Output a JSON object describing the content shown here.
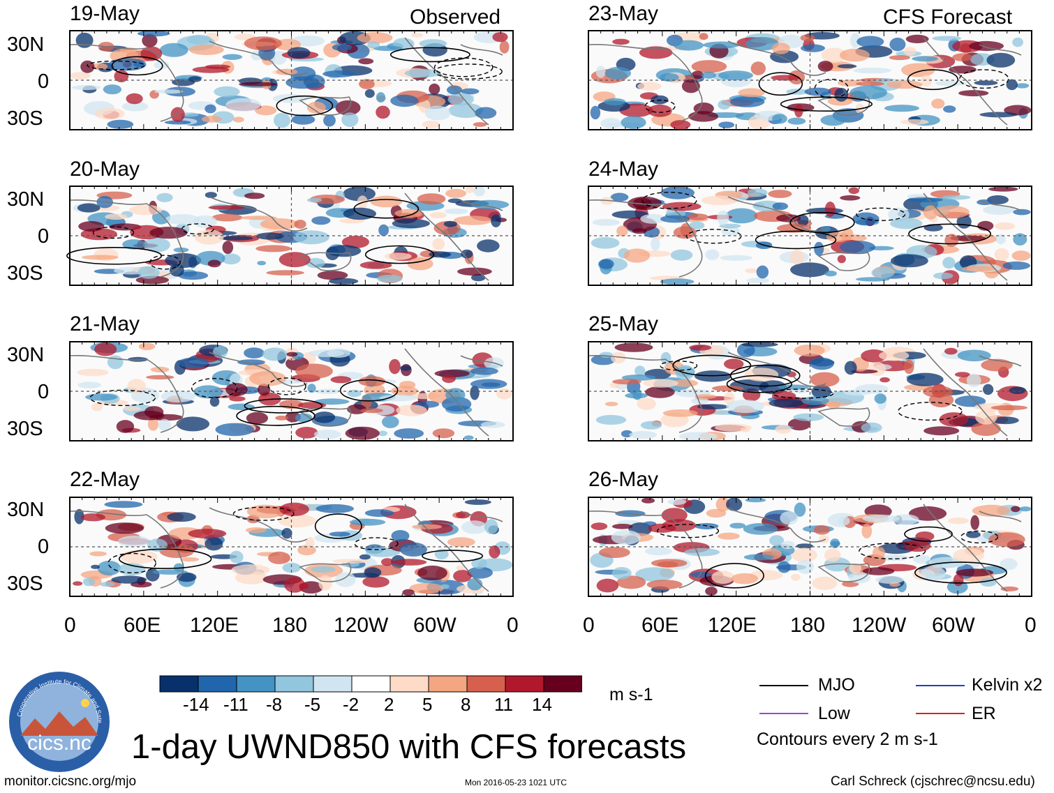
{
  "title": "1-day UWND850 with CFS forecasts",
  "panel_headers": {
    "observed": "Observed",
    "forecast": "CFS Forecast"
  },
  "left_panels": [
    {
      "date": "19-May"
    },
    {
      "date": "20-May"
    },
    {
      "date": "21-May"
    },
    {
      "date": "22-May"
    }
  ],
  "right_panels": [
    {
      "date": "23-May"
    },
    {
      "date": "24-May"
    },
    {
      "date": "25-May"
    },
    {
      "date": "26-May"
    }
  ],
  "lat_labels": [
    "30N",
    "0",
    "30S"
  ],
  "lon_labels": [
    "0",
    "60E",
    "120E",
    "180",
    "120W",
    "60W",
    "0"
  ],
  "colorbar": {
    "colors": [
      "#08306b",
      "#2166ac",
      "#4393c3",
      "#92c5de",
      "#d1e5f0",
      "#ffffff",
      "#fddbc7",
      "#f4a582",
      "#d6604d",
      "#b2182b",
      "#67001f"
    ],
    "labels": [
      "-14",
      "-11",
      "-8",
      "-5",
      "-2",
      "2",
      "5",
      "8",
      "11",
      "14"
    ],
    "units": "m s-1"
  },
  "legend": {
    "items": [
      {
        "label": "MJO",
        "color": "#000000"
      },
      {
        "label": "Kelvin x2",
        "color": "#1f3fbf"
      },
      {
        "label": "Low",
        "color": "#a040e0"
      },
      {
        "label": "ER",
        "color": "#d62020"
      }
    ],
    "note": "Contours every 2 m s-1"
  },
  "logo": {
    "arc_text": "Cooperative Institute for Climate and Satellites",
    "name": "cics.nc"
  },
  "footer": {
    "url": "monitor.cicsnc.org/mjo",
    "timestamp": "Mon 2016-05-23 1021 UTC",
    "author": "Carl Schreck (cjschrec@ncsu.edu)"
  }
}
